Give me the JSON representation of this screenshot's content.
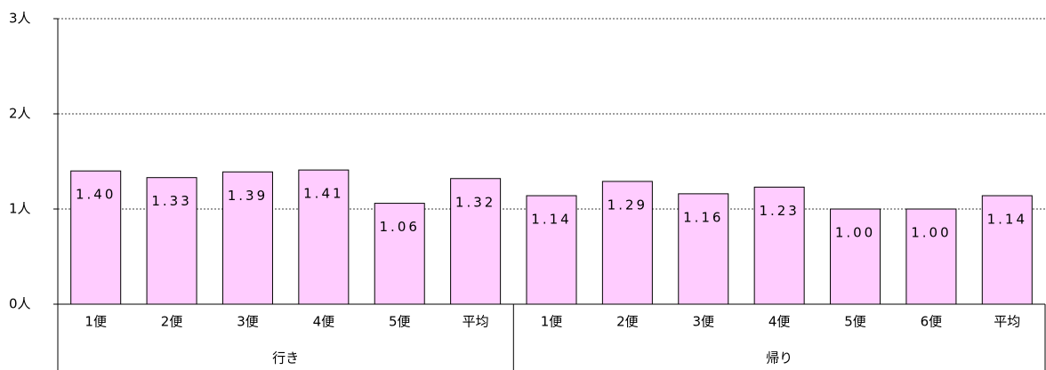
{
  "chart_data": {
    "type": "bar",
    "groups": [
      {
        "name": "行き",
        "categories": [
          "1便",
          "2便",
          "3便",
          "4便",
          "5便",
          "平均"
        ],
        "values": [
          1.4,
          1.33,
          1.39,
          1.41,
          1.06,
          1.32
        ],
        "value_labels": [
          "1.40",
          "1.33",
          "1.39",
          "1.41",
          "1.06",
          "1.32"
        ]
      },
      {
        "name": "帰り",
        "categories": [
          "1便",
          "2便",
          "3便",
          "4便",
          "5便",
          "6便",
          "平均"
        ],
        "values": [
          1.14,
          1.29,
          1.16,
          1.23,
          1.0,
          1.0,
          1.14
        ],
        "value_labels": [
          "1.14",
          "1.29",
          "1.16",
          "1.23",
          "1.00",
          "1.00",
          "1.14"
        ]
      }
    ],
    "color": "#ffccff",
    "ylim": [
      0,
      3
    ],
    "yticks": [
      {
        "value": 0,
        "label": "0人"
      },
      {
        "value": 1,
        "label": "1人"
      },
      {
        "value": 2,
        "label": "2人"
      },
      {
        "value": 3,
        "label": "3人"
      }
    ],
    "grid": true
  }
}
